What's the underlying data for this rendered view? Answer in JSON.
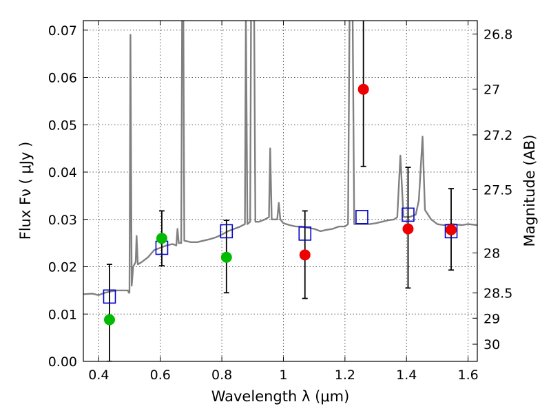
{
  "chart_data": {
    "type": "scatter",
    "title": "",
    "xlabel": "Wavelength  λ (μm)",
    "ylabel": "Flux  Fν  ( μJy )",
    "ylabel_right": "Magnitude (AB)",
    "xlim": [
      0.35,
      1.63
    ],
    "ylim": [
      0.0,
      0.072
    ],
    "grid": true,
    "x_ticks": [
      {
        "value": 0.4,
        "label": "0.4"
      },
      {
        "value": 0.6,
        "label": "0.6"
      },
      {
        "value": 0.8,
        "label": "0.8"
      },
      {
        "value": 1.0,
        "label": "1"
      },
      {
        "value": 1.2,
        "label": "1.2"
      },
      {
        "value": 1.4,
        "label": "1.4"
      },
      {
        "value": 1.6,
        "label": "1.6"
      }
    ],
    "y_ticks": [
      {
        "value": 0.0,
        "label": "0.00"
      },
      {
        "value": 0.01,
        "label": "0.01"
      },
      {
        "value": 0.02,
        "label": "0.02"
      },
      {
        "value": 0.03,
        "label": "0.03"
      },
      {
        "value": 0.04,
        "label": "0.04"
      },
      {
        "value": 0.05,
        "label": "0.05"
      },
      {
        "value": 0.06,
        "label": "0.06"
      },
      {
        "value": 0.07,
        "label": "0.07"
      }
    ],
    "magnitude_ticks": [
      {
        "value": 26.8,
        "label": "26.8"
      },
      {
        "value": 27.0,
        "label": "27"
      },
      {
        "value": 27.2,
        "label": "27.2"
      },
      {
        "value": 27.5,
        "label": "27.5"
      },
      {
        "value": 28.0,
        "label": "28"
      },
      {
        "value": 28.5,
        "label": "28.5"
      },
      {
        "value": 29.0,
        "label": "29"
      },
      {
        "value": 30.0,
        "label": "30"
      }
    ],
    "spectrum": {
      "color": "#808080",
      "points": [
        [
          0.35,
          0.0142
        ],
        [
          0.38,
          0.0143
        ],
        [
          0.4,
          0.014
        ],
        [
          0.42,
          0.0145
        ],
        [
          0.44,
          0.0148
        ],
        [
          0.46,
          0.015
        ],
        [
          0.48,
          0.015
        ],
        [
          0.495,
          0.015
        ],
        [
          0.498,
          0.0145
        ],
        [
          0.5,
          0.0145
        ],
        [
          0.503,
          0.069
        ],
        [
          0.507,
          0.016
        ],
        [
          0.512,
          0.02
        ],
        [
          0.52,
          0.021
        ],
        [
          0.523,
          0.0265
        ],
        [
          0.527,
          0.0205
        ],
        [
          0.54,
          0.021
        ],
        [
          0.56,
          0.022
        ],
        [
          0.58,
          0.0235
        ],
        [
          0.6,
          0.024
        ],
        [
          0.62,
          0.0245
        ],
        [
          0.64,
          0.0248
        ],
        [
          0.652,
          0.0245
        ],
        [
          0.656,
          0.028
        ],
        [
          0.66,
          0.025
        ],
        [
          0.668,
          0.025
        ],
        [
          0.671,
          0.073
        ],
        [
          0.675,
          0.073
        ],
        [
          0.678,
          0.0255
        ],
        [
          0.7,
          0.0252
        ],
        [
          0.72,
          0.0252
        ],
        [
          0.74,
          0.0255
        ],
        [
          0.76,
          0.0258
        ],
        [
          0.78,
          0.0262
        ],
        [
          0.8,
          0.0268
        ],
        [
          0.82,
          0.0275
        ],
        [
          0.84,
          0.028
        ],
        [
          0.86,
          0.0285
        ],
        [
          0.875,
          0.029
        ],
        [
          0.878,
          0.073
        ],
        [
          0.883,
          0.029
        ],
        [
          0.892,
          0.0295
        ],
        [
          0.895,
          0.073
        ],
        [
          0.905,
          0.073
        ],
        [
          0.909,
          0.0295
        ],
        [
          0.92,
          0.0295
        ],
        [
          0.94,
          0.03
        ],
        [
          0.953,
          0.0305
        ],
        [
          0.957,
          0.045
        ],
        [
          0.962,
          0.03
        ],
        [
          0.98,
          0.03
        ],
        [
          0.985,
          0.0335
        ],
        [
          0.99,
          0.03
        ],
        [
          1.0,
          0.0292
        ],
        [
          1.02,
          0.0288
        ],
        [
          1.04,
          0.0285
        ],
        [
          1.06,
          0.0285
        ],
        [
          1.08,
          0.0282
        ],
        [
          1.1,
          0.028
        ],
        [
          1.12,
          0.0275
        ],
        [
          1.14,
          0.0278
        ],
        [
          1.16,
          0.028
        ],
        [
          1.18,
          0.0285
        ],
        [
          1.2,
          0.0285
        ],
        [
          1.21,
          0.029
        ],
        [
          1.215,
          0.073
        ],
        [
          1.225,
          0.073
        ],
        [
          1.23,
          0.029
        ],
        [
          1.26,
          0.029
        ],
        [
          1.28,
          0.029
        ],
        [
          1.3,
          0.0292
        ],
        [
          1.32,
          0.0295
        ],
        [
          1.34,
          0.0298
        ],
        [
          1.36,
          0.03
        ],
        [
          1.37,
          0.0305
        ],
        [
          1.38,
          0.0435
        ],
        [
          1.39,
          0.0305
        ],
        [
          1.41,
          0.0305
        ],
        [
          1.43,
          0.031
        ],
        [
          1.44,
          0.034
        ],
        [
          1.452,
          0.0475
        ],
        [
          1.46,
          0.032
        ],
        [
          1.48,
          0.03
        ],
        [
          1.5,
          0.029
        ],
        [
          1.52,
          0.0288
        ],
        [
          1.55,
          0.029
        ],
        [
          1.58,
          0.0288
        ],
        [
          1.6,
          0.029
        ],
        [
          1.63,
          0.0288
        ]
      ]
    },
    "series": [
      {
        "marker": "open-square",
        "color": "#0000cc",
        "points": [
          {
            "x": 0.435,
            "y": 0.0137
          },
          {
            "x": 0.605,
            "y": 0.024
          },
          {
            "x": 0.815,
            "y": 0.0275
          },
          {
            "x": 1.07,
            "y": 0.027
          },
          {
            "x": 1.255,
            "y": 0.0305
          },
          {
            "x": 1.405,
            "y": 0.031
          },
          {
            "x": 1.545,
            "y": 0.0275
          }
        ]
      },
      {
        "marker": "filled-circle",
        "color": "#00bb00",
        "points": [
          {
            "x": 0.435,
            "y": 0.0088,
            "yerr_low": 0.0,
            "yerr_high": 0.0205
          },
          {
            "x": 0.605,
            "y": 0.026,
            "yerr_low": 0.0202,
            "yerr_high": 0.0318
          },
          {
            "x": 0.815,
            "y": 0.022,
            "yerr_low": 0.0145,
            "yerr_high": 0.0298
          }
        ]
      },
      {
        "marker": "filled-circle",
        "color": "#ee0000",
        "points": [
          {
            "x": 1.07,
            "y": 0.0225,
            "yerr_low": 0.0133,
            "yerr_high": 0.0318
          },
          {
            "x": 1.26,
            "y": 0.0575,
            "yerr_low": 0.0412,
            "yerr_high": 0.073
          },
          {
            "x": 1.405,
            "y": 0.028,
            "yerr_low": 0.0155,
            "yerr_high": 0.041
          },
          {
            "x": 1.545,
            "y": 0.0278,
            "yerr_low": 0.0193,
            "yerr_high": 0.0365
          }
        ]
      }
    ]
  }
}
